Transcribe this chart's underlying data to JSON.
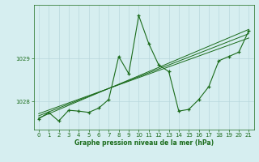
{
  "xlabel": "Graphe pression niveau de la mer (hPa)",
  "x_values": [
    0,
    1,
    2,
    3,
    4,
    5,
    6,
    7,
    8,
    9,
    10,
    11,
    12,
    13,
    14,
    15,
    16,
    17,
    18,
    19,
    20,
    21
  ],
  "pressure_data": [
    1027.6,
    1027.75,
    1027.55,
    1027.8,
    1027.78,
    1027.75,
    1027.85,
    1028.05,
    1029.05,
    1028.65,
    1030.0,
    1029.35,
    1028.85,
    1028.7,
    1027.78,
    1027.82,
    1028.05,
    1028.35,
    1028.95,
    1029.05,
    1029.15,
    1029.65
  ],
  "trend_line1_x": [
    0,
    21
  ],
  "trend_line1_y": [
    1027.62,
    1029.68
  ],
  "trend_line2_x": [
    0,
    21
  ],
  "trend_line2_y": [
    1027.67,
    1029.58
  ],
  "trend_line3_x": [
    0,
    21
  ],
  "trend_line3_y": [
    1027.72,
    1029.48
  ],
  "line_color": "#1a6b1a",
  "bg_color": "#d6eef0",
  "grid_color": "#b8d8dc",
  "ylim": [
    1027.35,
    1030.25
  ],
  "yticks": [
    1028,
    1029
  ],
  "xlim": [
    -0.5,
    21.5
  ],
  "xticks": [
    0,
    1,
    2,
    3,
    4,
    5,
    6,
    7,
    8,
    9,
    10,
    11,
    12,
    13,
    14,
    15,
    16,
    17,
    18,
    19,
    20,
    21
  ],
  "tick_labelsize": 5.0,
  "xlabel_fontsize": 5.5
}
